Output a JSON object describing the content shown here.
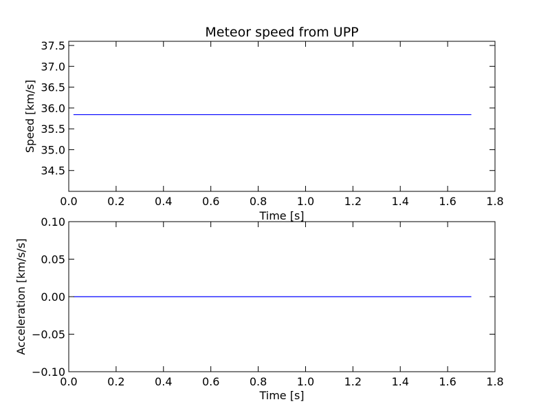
{
  "chart_data": [
    {
      "type": "line",
      "title": "Meteor speed from  UPP",
      "xlabel": "Time [s]",
      "ylabel": "Speed [km/s]",
      "xlim": [
        0.0,
        1.8
      ],
      "ylim": [
        34.0,
        37.6
      ],
      "xticks": [
        "0.0",
        "0.2",
        "0.4",
        "0.6",
        "0.8",
        "1.0",
        "1.2",
        "1.4",
        "1.6",
        "1.8"
      ],
      "yticks": [
        "34.5",
        "35.0",
        "35.5",
        "36.0",
        "36.5",
        "37.0",
        "37.5"
      ],
      "grid": false,
      "color": "#0000ff",
      "series": [
        {
          "x": [
            0.02,
            1.7
          ],
          "y": [
            35.84,
            35.84
          ]
        }
      ]
    },
    {
      "type": "line",
      "title": "",
      "xlabel": "Time [s]",
      "ylabel": "Acceleration [km/s/s]",
      "xlim": [
        0.0,
        1.8
      ],
      "ylim": [
        -0.1,
        0.1
      ],
      "xticks": [
        "0.0",
        "0.2",
        "0.4",
        "0.6",
        "0.8",
        "1.0",
        "1.2",
        "1.4",
        "1.6",
        "1.8"
      ],
      "yticks": [
        "−0.10",
        "−0.05",
        "0.00",
        "0.05",
        "0.10"
      ],
      "grid": false,
      "color": "#0000ff",
      "series": [
        {
          "x": [
            0.02,
            1.7
          ],
          "y": [
            0.0,
            0.0
          ]
        }
      ]
    }
  ]
}
